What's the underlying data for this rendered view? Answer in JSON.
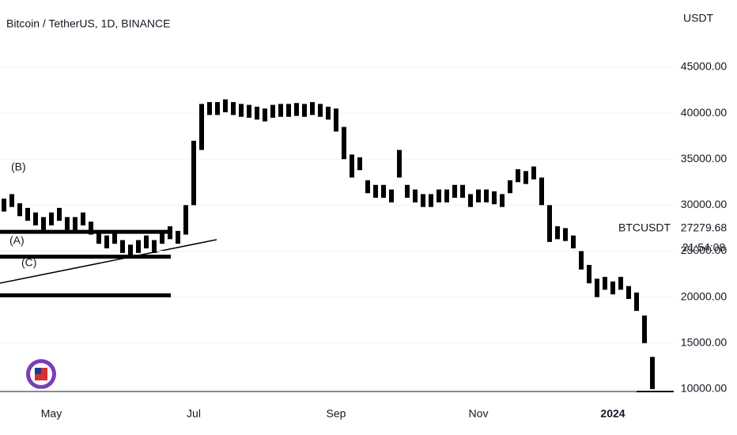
{
  "chart_data": {
    "type": "ohlc",
    "title": "Bitcoin / TetherUS, 1D, BINANCE",
    "currency": "USDT",
    "categories": [
      null,
      null,
      null,
      null,
      null,
      null,
      "May",
      null,
      null,
      null,
      null,
      null,
      null,
      null,
      null,
      null,
      null,
      null,
      null,
      null,
      null,
      null,
      null,
      null,
      "Jul",
      null,
      null,
      null,
      null,
      null,
      null,
      null,
      null,
      null,
      null,
      null,
      null,
      null,
      null,
      null,
      null,
      null,
      "Sep",
      null,
      null,
      null,
      null,
      null,
      null,
      null,
      null,
      null,
      null,
      null,
      null,
      null,
      null,
      null,
      null,
      null,
      "Nov",
      null,
      null,
      null,
      null,
      null,
      null,
      null,
      null,
      null,
      null,
      null,
      null,
      null,
      null,
      null,
      null,
      "2024",
      null,
      null,
      null,
      null,
      null
    ],
    "high": [
      30700,
      31200,
      30200,
      29700,
      29200,
      28700,
      29200,
      29700,
      28700,
      28700,
      29200,
      28200,
      27200,
      26700,
      27200,
      26200,
      25700,
      26200,
      26700,
      26200,
      27200,
      27700,
      27200,
      30000,
      37000,
      41000,
      41200,
      41200,
      41500,
      41200,
      41000,
      40900,
      40700,
      40500,
      40900,
      41000,
      41000,
      41100,
      41000,
      41200,
      41000,
      40700,
      40500,
      38500,
      35500,
      35200,
      32700,
      32200,
      32200,
      31700,
      36000,
      32200,
      31700,
      31200,
      31200,
      31700,
      31700,
      32200,
      32200,
      31200,
      31700,
      31700,
      31500,
      31200,
      32700,
      33900,
      33700,
      34200,
      33000,
      30000,
      27700,
      27500,
      26700,
      25000,
      23500,
      22000,
      22200,
      21700,
      22200,
      21200,
      20500,
      18000,
      13500
    ],
    "low": [
      29300,
      29800,
      28800,
      28300,
      27800,
      27300,
      27800,
      28300,
      27300,
      27300,
      27800,
      26800,
      25800,
      25300,
      25800,
      24800,
      24300,
      24800,
      25300,
      24800,
      25800,
      26300,
      25800,
      26800,
      30000,
      36000,
      39800,
      39800,
      40100,
      39800,
      39600,
      39500,
      39300,
      39100,
      39500,
      39600,
      39600,
      39700,
      39600,
      39800,
      39600,
      39300,
      38000,
      35000,
      33000,
      33800,
      31300,
      30800,
      30800,
      30300,
      33000,
      30800,
      30300,
      29800,
      29800,
      30300,
      30300,
      30800,
      30800,
      29800,
      30300,
      30300,
      30100,
      29800,
      31300,
      32500,
      32300,
      32800,
      30000,
      26000,
      26300,
      26100,
      25300,
      23000,
      21500,
      20000,
      20800,
      20300,
      20800,
      19800,
      18500,
      15000,
      10000
    ],
    "color": "#000000",
    "ylim": [
      9740,
      52300
    ],
    "yticks": [
      {
        "value": 10000,
        "label": "10000.00"
      },
      {
        "value": 15000,
        "label": "15000.00"
      },
      {
        "value": 20000,
        "label": "20000.00"
      },
      {
        "value": 25000,
        "label": "25000.00"
      },
      {
        "value": 30000,
        "label": "30000.00"
      },
      {
        "value": 35000,
        "label": "35000.00"
      },
      {
        "value": 40000,
        "label": "40000.00"
      },
      {
        "value": 45000,
        "label": "45000.00"
      }
    ],
    "grid": true,
    "levels": [
      27100,
      24400,
      20200
    ],
    "annotations": [
      "(B)",
      "(A)",
      "(C)"
    ],
    "symbol": "BTCUSDT",
    "last_price": 27279.68,
    "countdown": "21:54:08"
  }
}
